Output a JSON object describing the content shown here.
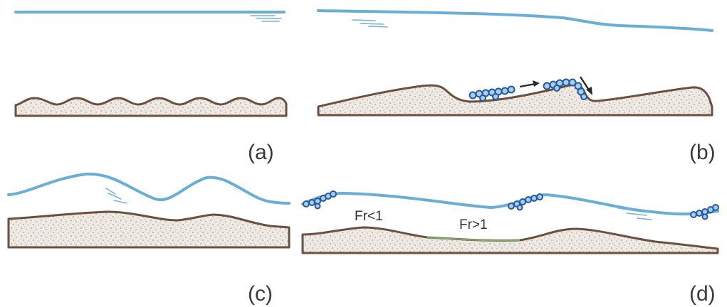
{
  "panels": {
    "a": {
      "label": "(a)"
    },
    "b": {
      "label": "(b)"
    },
    "c": {
      "label": "(c)"
    },
    "d": {
      "label": "(d)",
      "froude_left": "Fr<1",
      "froude_right": "Fr>1"
    }
  },
  "colors": {
    "water": "#69aed6",
    "bed_outline": "#6b5040",
    "sediment_fill": "#eeeae3",
    "sediment_dots": "#8a8278",
    "particle_fill": "#9fd2ec",
    "particle_stroke": "#2c57a0"
  }
}
